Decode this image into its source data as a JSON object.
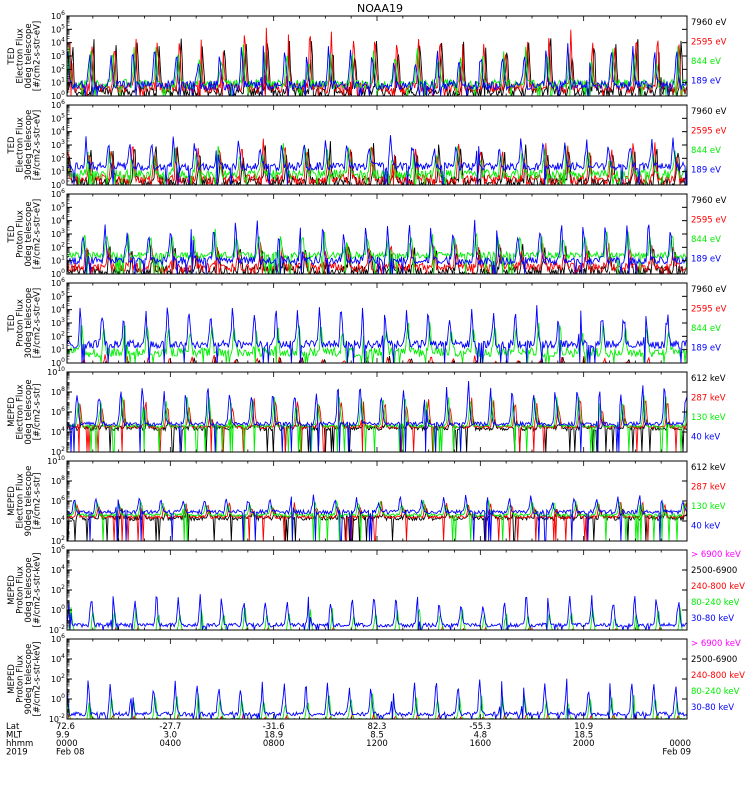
{
  "title": "NOAA19",
  "colors": {
    "black": "#000000",
    "red": "#ff0000",
    "green": "#00ee00",
    "blue": "#0000ff",
    "magenta": "#ff00ff"
  },
  "chart_data": [
    {
      "type": "line",
      "ylabel": [
        "TED",
        "Electron Flux",
        "0deg telescope",
        "[#/cm2-s-str-eV]"
      ],
      "yscale": "log",
      "ylim": [
        1,
        1000000
      ],
      "yticks": [
        {
          "v": 1,
          "label": "10^0"
        },
        {
          "v": 10,
          "label": "10^1"
        },
        {
          "v": 100,
          "label": "10^2"
        },
        {
          "v": 1000,
          "label": "10^3"
        },
        {
          "v": 10000,
          "label": "10^4"
        },
        {
          "v": 100000,
          "label": "10^5"
        },
        {
          "v": 1000000,
          "label": "10^6"
        }
      ],
      "series": [
        {
          "name": "7960 eV",
          "color": "black",
          "base": 0.3,
          "peak": 4.6,
          "noise": 0.8
        },
        {
          "name": "2595 eV",
          "color": "red",
          "base": 0.6,
          "peak": 5.1,
          "noise": 0.8
        },
        {
          "name": "844 eV",
          "color": "green",
          "base": 0.9,
          "peak": 3.6,
          "noise": 0.7
        },
        {
          "name": "189 eV",
          "color": "blue",
          "base": 0.8,
          "peak": 3.9,
          "noise": 0.7
        }
      ]
    },
    {
      "type": "line",
      "ylabel": [
        "TED",
        "Electron Flux",
        "30deg telescope",
        "[#/cm2-s-str-eV]"
      ],
      "yscale": "log",
      "ylim": [
        1,
        1000000
      ],
      "yticks": [
        {
          "v": 1,
          "label": "10^0"
        },
        {
          "v": 10,
          "label": "10^1"
        },
        {
          "v": 100,
          "label": "10^2"
        },
        {
          "v": 1000,
          "label": "10^3"
        },
        {
          "v": 10000,
          "label": "10^4"
        },
        {
          "v": 100000,
          "label": "10^5"
        },
        {
          "v": 1000000,
          "label": "10^6"
        }
      ],
      "series": [
        {
          "name": "7960 eV",
          "color": "black",
          "base": 0.2,
          "peak": 3.2,
          "noise": 0.8
        },
        {
          "name": "2595 eV",
          "color": "red",
          "base": 0.4,
          "peak": 3.4,
          "noise": 0.8
        },
        {
          "name": "844 eV",
          "color": "green",
          "base": 0.8,
          "peak": 3.0,
          "noise": 0.7
        },
        {
          "name": "189 eV",
          "color": "blue",
          "base": 1.4,
          "peak": 3.6,
          "noise": 0.6
        }
      ]
    },
    {
      "type": "line",
      "ylabel": [
        "TED",
        "Proton Flux",
        "0deg telescope",
        "[#/cm2-s-str-eV]"
      ],
      "yscale": "log",
      "ylim": [
        1,
        1000000
      ],
      "yticks": [
        {
          "v": 1,
          "label": "10^0"
        },
        {
          "v": 10,
          "label": "10^1"
        },
        {
          "v": 100,
          "label": "10^2"
        },
        {
          "v": 1000,
          "label": "10^3"
        },
        {
          "v": 10000,
          "label": "10^4"
        },
        {
          "v": 100000,
          "label": "10^5"
        },
        {
          "v": 1000000,
          "label": "10^6"
        }
      ],
      "series": [
        {
          "name": "7960 eV",
          "color": "black",
          "base": 0.2,
          "peak": 2.2,
          "noise": 0.8
        },
        {
          "name": "2595 eV",
          "color": "red",
          "base": 0.5,
          "peak": 2.4,
          "noise": 0.7
        },
        {
          "name": "844 eV",
          "color": "green",
          "base": 1.4,
          "peak": 3.4,
          "noise": 0.5
        },
        {
          "name": "189 eV",
          "color": "blue",
          "base": 1.0,
          "peak": 4.0,
          "noise": 0.6
        }
      ]
    },
    {
      "type": "line",
      "ylabel": [
        "TED",
        "Proton Flux",
        "30deg telescope",
        "[#/cm2-s-str-eV]"
      ],
      "yscale": "log",
      "ylim": [
        1,
        1000000
      ],
      "yticks": [
        {
          "v": 1,
          "label": "10^0"
        },
        {
          "v": 10,
          "label": "10^1"
        },
        {
          "v": 100,
          "label": "10^2"
        },
        {
          "v": 1000,
          "label": "10^3"
        },
        {
          "v": 10000,
          "label": "10^4"
        },
        {
          "v": 100000,
          "label": "10^5"
        },
        {
          "v": 1000000,
          "label": "10^6"
        }
      ],
      "series": [
        {
          "name": "7960 eV",
          "color": "black",
          "base": -0.5,
          "peak": 0.4,
          "noise": 0.4
        },
        {
          "name": "2595 eV",
          "color": "red",
          "base": -0.4,
          "peak": 0.6,
          "noise": 0.4
        },
        {
          "name": "844 eV",
          "color": "green",
          "base": 0.8,
          "peak": 3.2,
          "noise": 0.7
        },
        {
          "name": "189 eV",
          "color": "blue",
          "base": 1.4,
          "peak": 4.3,
          "noise": 0.6
        }
      ]
    },
    {
      "type": "line",
      "ylabel": [
        "MEPED",
        "Electron Flux",
        "0deg telescope",
        "[#/cm2-s-str]"
      ],
      "yscale": "log",
      "ylim": [
        100,
        10000000000
      ],
      "yticks": [
        {
          "v": 100,
          "label": "10^2"
        },
        {
          "v": 10000,
          "label": "10^4"
        },
        {
          "v": 1000000,
          "label": "10^6"
        },
        {
          "v": 100000000,
          "label": "10^8"
        },
        {
          "v": 10000000000,
          "label": "10^10"
        }
      ],
      "series": [
        {
          "name": "612 keV",
          "color": "black",
          "base": 2.4,
          "peak": 3.3,
          "noise": 0.5
        },
        {
          "name": "287 keV",
          "color": "red",
          "base": 2.5,
          "peak": 5.6,
          "noise": 0.3
        },
        {
          "name": "130 keV",
          "color": "green",
          "base": 2.6,
          "peak": 5.8,
          "noise": 0.3
        },
        {
          "name": "40 keV",
          "color": "blue",
          "base": 2.8,
          "peak": 7.0,
          "noise": 0.4
        }
      ]
    },
    {
      "type": "line",
      "ylabel": [
        "MEPED",
        "Electron Flux",
        "90deg telescope",
        "[#/cm2-s-str]"
      ],
      "yscale": "log",
      "ylim": [
        100,
        10000000000
      ],
      "yticks": [
        {
          "v": 100,
          "label": "10^2"
        },
        {
          "v": 10000,
          "label": "10^4"
        },
        {
          "v": 1000000,
          "label": "10^6"
        },
        {
          "v": 100000000,
          "label": "10^8"
        },
        {
          "v": 10000000000,
          "label": "10^10"
        }
      ],
      "series": [
        {
          "name": "612 keV",
          "color": "black",
          "base": 2.3,
          "peak": 3.2,
          "noise": 0.5
        },
        {
          "name": "287 keV",
          "color": "red",
          "base": 2.4,
          "peak": 3.9,
          "noise": 0.3
        },
        {
          "name": "130 keV",
          "color": "green",
          "base": 2.6,
          "peak": 4.2,
          "noise": 0.3
        },
        {
          "name": "40 keV",
          "color": "blue",
          "base": 2.9,
          "peak": 4.6,
          "noise": 0.4
        }
      ]
    },
    {
      "type": "line",
      "ylabel": [
        "MEPED",
        "Proton Flux",
        "0deg telescope",
        "[#/cm2-s-str-keV]"
      ],
      "yscale": "log",
      "ylim": [
        0.01,
        1000000
      ],
      "yticks": [
        {
          "v": 0.01,
          "label": "10^-2"
        },
        {
          "v": 1,
          "label": "10^0"
        },
        {
          "v": 100,
          "label": "10^2"
        },
        {
          "v": 10000,
          "label": "10^4"
        },
        {
          "v": 1000000,
          "label": "10^6"
        }
      ],
      "series": [
        {
          "name": "> 6900 keV",
          "color": "magenta",
          "base": -2.2,
          "peak": -1.1,
          "noise": 0.3
        },
        {
          "name": "2500-6900",
          "color": "black",
          "base": -1.6,
          "peak": -0.5,
          "noise": 0.4
        },
        {
          "name": "240-800 keV",
          "color": "red",
          "base": -0.9,
          "peak": 0.4,
          "noise": 0.3
        },
        {
          "name": "80-240 keV",
          "color": "green",
          "base": -0.2,
          "peak": 2.3,
          "noise": 0.4
        },
        {
          "name": "30-80 keV",
          "color": "blue",
          "base": 0.5,
          "peak": 3.8,
          "noise": 0.4
        }
      ]
    },
    {
      "type": "line",
      "ylabel": [
        "MEPED",
        "Proton Flux",
        "90deg telescope",
        "[#/cm2-s-str-keV]"
      ],
      "yscale": "log",
      "ylim": [
        0.01,
        1000000
      ],
      "yticks": [
        {
          "v": 0.01,
          "label": "10^-2"
        },
        {
          "v": 1,
          "label": "10^0"
        },
        {
          "v": 100,
          "label": "10^2"
        },
        {
          "v": 10000,
          "label": "10^4"
        },
        {
          "v": 1000000,
          "label": "10^6"
        }
      ],
      "series": [
        {
          "name": "> 6900 keV",
          "color": "magenta",
          "base": -2.2,
          "peak": -1.1,
          "noise": 0.3
        },
        {
          "name": "2500-6900",
          "color": "black",
          "base": -1.6,
          "peak": -0.4,
          "noise": 0.4
        },
        {
          "name": "240-800 keV",
          "color": "red",
          "base": -0.6,
          "peak": 0.7,
          "noise": 0.3
        },
        {
          "name": "80-240 keV",
          "color": "green",
          "base": -0.1,
          "peak": 2.6,
          "noise": 0.4
        },
        {
          "name": "30-80 keV",
          "color": "blue",
          "base": 0.5,
          "peak": 4.1,
          "noise": 0.4
        }
      ]
    }
  ],
  "time_axis": {
    "row_labels": [
      "Lat",
      "MLT",
      "hhmm",
      "2019"
    ],
    "xlim_hours": [
      0,
      24
    ],
    "ticks": [
      {
        "hour": 0,
        "lat": "72.6",
        "mlt": "9.9",
        "hhmm": "0000",
        "date": "Feb 08"
      },
      {
        "hour": 4,
        "lat": "-27.7",
        "mlt": "3.0",
        "hhmm": "0400",
        "date": ""
      },
      {
        "hour": 8,
        "lat": "-31.6",
        "mlt": "18.9",
        "hhmm": "0800",
        "date": ""
      },
      {
        "hour": 12,
        "lat": "82.3",
        "mlt": "8.5",
        "hhmm": "1200",
        "date": ""
      },
      {
        "hour": 16,
        "lat": "-55.3",
        "mlt": "4.8",
        "hhmm": "1600",
        "date": ""
      },
      {
        "hour": 20,
        "lat": "10.9",
        "mlt": "18.5",
        "hhmm": "2000",
        "date": ""
      },
      {
        "hour": 24,
        "lat": "",
        "mlt": "",
        "hhmm": "0000",
        "date": "Feb 09"
      }
    ]
  }
}
